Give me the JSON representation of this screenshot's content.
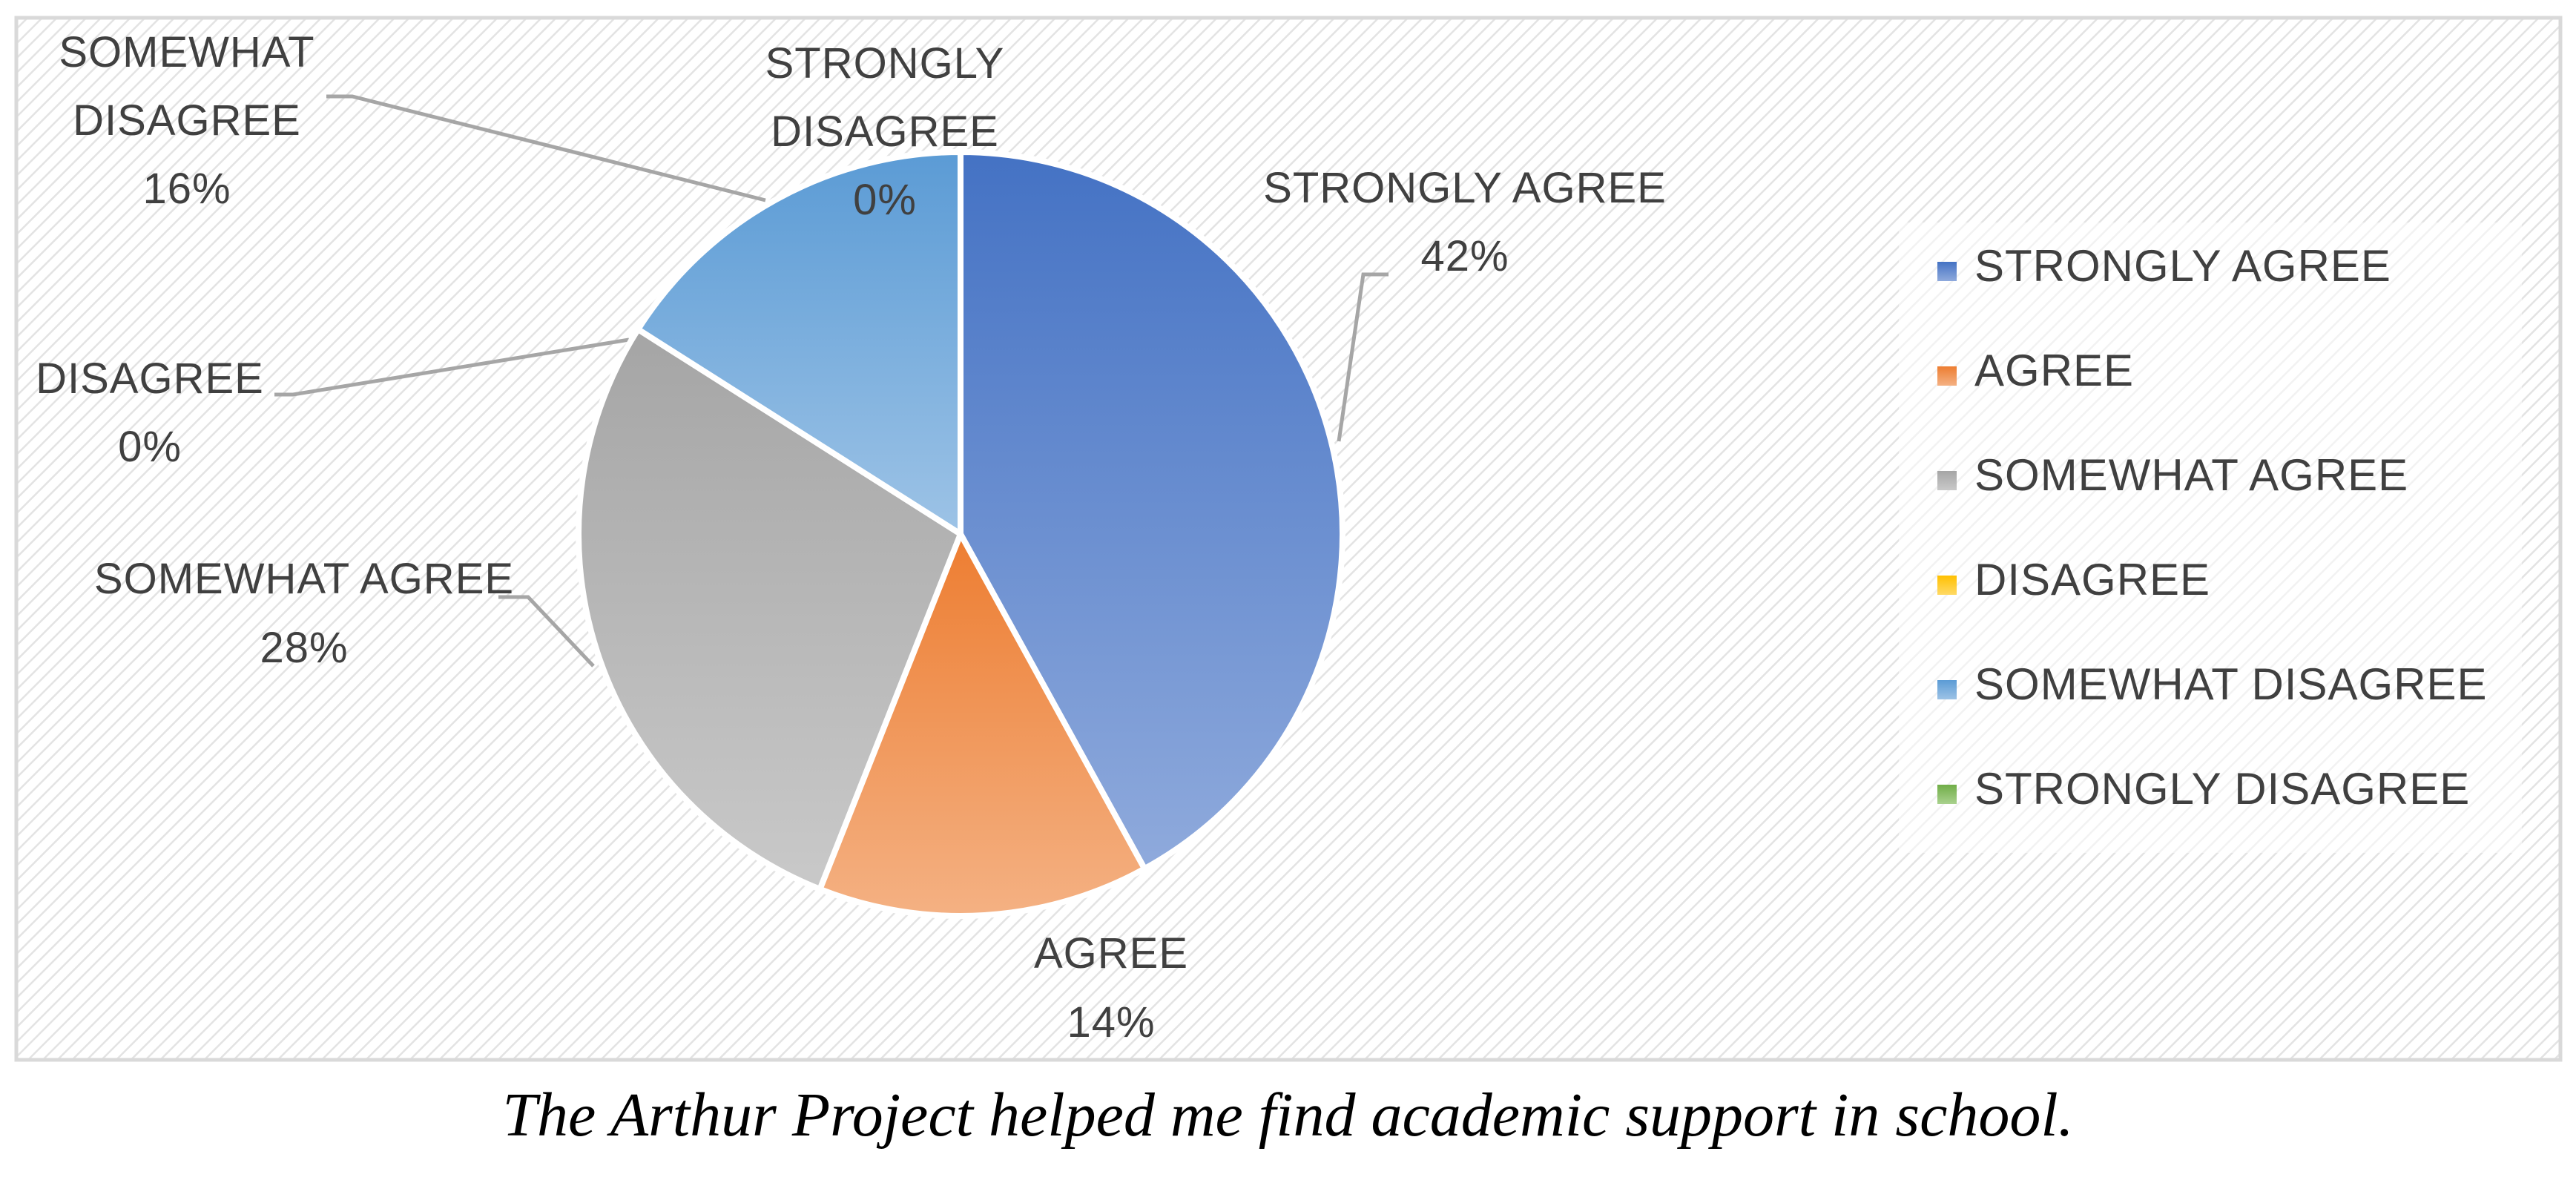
{
  "caption": "The Arthur Project helped me find academic support in school.",
  "colors": {
    "STRONGLY AGREE": [
      "#4472C4",
      "#8FAADC"
    ],
    "AGREE": [
      "#ED7D31",
      "#F4B183"
    ],
    "SOMEWHAT AGREE": [
      "#A5A5A5",
      "#C9C9C9"
    ],
    "DISAGREE": [
      "#FFC000",
      "#FFD966"
    ],
    "SOMEWHAT DISAGREE": [
      "#5B9BD5",
      "#9DC3E6"
    ],
    "STRONGLY DISAGREE": [
      "#70AD47",
      "#A9D18E"
    ]
  },
  "chart_data": {
    "type": "pie",
    "title": "",
    "categories": [
      "STRONGLY AGREE",
      "AGREE",
      "SOMEWHAT AGREE",
      "DISAGREE",
      "SOMEWHAT DISAGREE",
      "STRONGLY DISAGREE"
    ],
    "values": [
      42,
      14,
      28,
      0,
      16,
      0
    ],
    "data_labels": [
      {
        "category": "STRONGLY AGREE",
        "percent": "42%"
      },
      {
        "category": "AGREE",
        "percent": "14%"
      },
      {
        "category": "SOMEWHAT AGREE",
        "percent": "28%"
      },
      {
        "category": "DISAGREE",
        "percent": "0%"
      },
      {
        "category": "SOMEWHAT DISAGREE",
        "percent": "16%"
      },
      {
        "category": "STRONGLY DISAGREE",
        "percent": "0%"
      }
    ],
    "legend": {
      "placement": "right",
      "entries": [
        "STRONGLY AGREE",
        "AGREE",
        "SOMEWHAT AGREE",
        "DISAGREE",
        "SOMEWHAT DISAGREE",
        "STRONGLY DISAGREE"
      ]
    }
  }
}
